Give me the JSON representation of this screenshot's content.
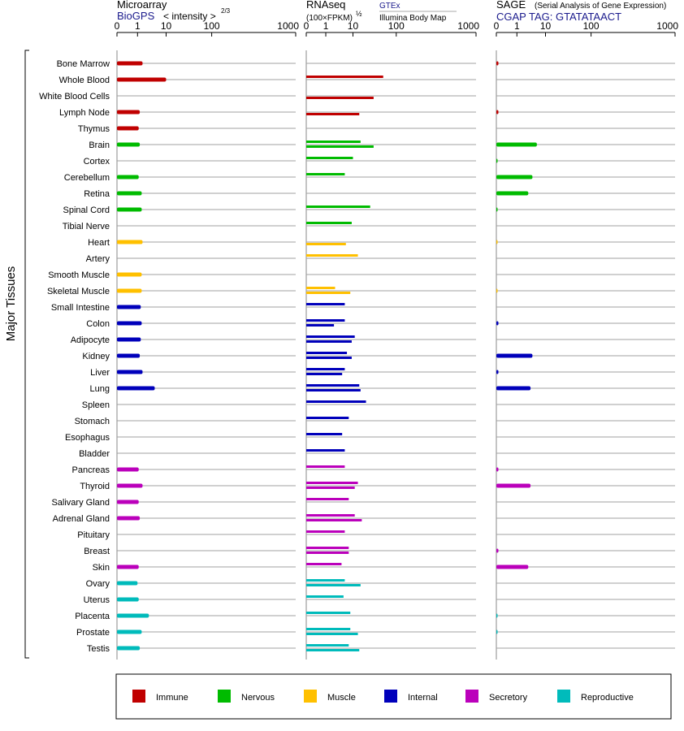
{
  "chart_data": {
    "type": "bar",
    "y_axis_title": "Major Tissues",
    "tissues": [
      {
        "name": "Bone Marrow",
        "group": "Immune"
      },
      {
        "name": "Whole Blood",
        "group": "Immune"
      },
      {
        "name": "White Blood Cells",
        "group": "Immune"
      },
      {
        "name": "Lymph Node",
        "group": "Immune"
      },
      {
        "name": "Thymus",
        "group": "Immune"
      },
      {
        "name": "Brain",
        "group": "Nervous"
      },
      {
        "name": "Cortex",
        "group": "Nervous"
      },
      {
        "name": "Cerebellum",
        "group": "Nervous"
      },
      {
        "name": "Retina",
        "group": "Nervous"
      },
      {
        "name": "Spinal Cord",
        "group": "Nervous"
      },
      {
        "name": "Tibial Nerve",
        "group": "Nervous"
      },
      {
        "name": "Heart",
        "group": "Muscle"
      },
      {
        "name": "Artery",
        "group": "Muscle"
      },
      {
        "name": "Smooth Muscle",
        "group": "Muscle"
      },
      {
        "name": "Skeletal Muscle",
        "group": "Muscle"
      },
      {
        "name": "Small Intestine",
        "group": "Internal"
      },
      {
        "name": "Colon",
        "group": "Internal"
      },
      {
        "name": "Adipocyte",
        "group": "Internal"
      },
      {
        "name": "Kidney",
        "group": "Internal"
      },
      {
        "name": "Liver",
        "group": "Internal"
      },
      {
        "name": "Lung",
        "group": "Internal"
      },
      {
        "name": "Spleen",
        "group": "Internal"
      },
      {
        "name": "Stomach",
        "group": "Internal"
      },
      {
        "name": "Esophagus",
        "group": "Internal"
      },
      {
        "name": "Bladder",
        "group": "Internal"
      },
      {
        "name": "Pancreas",
        "group": "Secretory"
      },
      {
        "name": "Thyroid",
        "group": "Secretory"
      },
      {
        "name": "Salivary Gland",
        "group": "Secretory"
      },
      {
        "name": "Adrenal Gland",
        "group": "Secretory"
      },
      {
        "name": "Pituitary",
        "group": "Secretory"
      },
      {
        "name": "Breast",
        "group": "Secretory"
      },
      {
        "name": "Skin",
        "group": "Secretory"
      },
      {
        "name": "Ovary",
        "group": "Reproductive"
      },
      {
        "name": "Uterus",
        "group": "Reproductive"
      },
      {
        "name": "Placenta",
        "group": "Reproductive"
      },
      {
        "name": "Prostate",
        "group": "Reproductive"
      },
      {
        "name": "Testis",
        "group": "Reproductive"
      }
    ],
    "legend": [
      {
        "name": "Immune",
        "color": "#c00000"
      },
      {
        "name": "Nervous",
        "color": "#00bb00"
      },
      {
        "name": "Muscle",
        "color": "#ffc000"
      },
      {
        "name": "Internal",
        "color": "#0000bb"
      },
      {
        "name": "Secretory",
        "color": "#bb00bb"
      },
      {
        "name": "Reproductive",
        "color": "#00bbbb"
      }
    ],
    "panels": [
      {
        "title": "Microarray",
        "subtitle": "BioGPS",
        "note": "< intensity >",
        "note_exponent": "2/3",
        "scale": "log-like (0 to 1000)",
        "ticks": [
          "0",
          "1",
          "10",
          "100",
          "1000"
        ],
        "values": [
          1.5,
          10,
          null,
          1.2,
          1.1,
          1.2,
          null,
          1.1,
          1.4,
          1.4,
          null,
          1.5,
          null,
          1.4,
          1.4,
          1.3,
          1.4,
          1.3,
          1.2,
          1.5,
          4,
          null,
          null,
          null,
          null,
          1.1,
          1.5,
          1.1,
          1.2,
          null,
          null,
          1.1,
          1.0,
          1.1,
          2.5,
          1.4,
          1.2
        ]
      },
      {
        "title": "RNAseq",
        "subtitle": "(100×FPKM)",
        "subtitle_exponent": "½",
        "source_top": "GTEx",
        "source_bottom": "Illumina Body Map",
        "scale": "log-like (0 to 1000)",
        "ticks": [
          "0",
          "1",
          "10",
          "100",
          "1000"
        ],
        "gtex": [
          null,
          50,
          null,
          null,
          null,
          15,
          10,
          5,
          null,
          25,
          9,
          null,
          13,
          null,
          2.2,
          5,
          5,
          11,
          6,
          5,
          14,
          20,
          7,
          4,
          5,
          5,
          13,
          7,
          11,
          5,
          7,
          3.8,
          5,
          4.5,
          8,
          8,
          7
        ],
        "ibm": [
          null,
          null,
          30,
          14,
          null,
          30,
          null,
          null,
          null,
          null,
          null,
          5.5,
          null,
          null,
          8,
          null,
          2,
          9,
          9,
          4,
          15,
          null,
          null,
          null,
          null,
          null,
          11,
          null,
          16,
          null,
          7,
          null,
          15,
          null,
          null,
          13,
          14
        ]
      },
      {
        "title": "SAGE",
        "title_note": "(Serial Analysis of Gene Expression)",
        "subtitle": "CGAP TAG: GTATATAACT",
        "scale": "log-like (0 to 1000)",
        "ticks": [
          "0",
          "1",
          "10",
          "100",
          "1000"
        ],
        "values": [
          0.1,
          null,
          null,
          0.1,
          null,
          5,
          0.05,
          3.5,
          2.5,
          0.05,
          null,
          0.02,
          null,
          null,
          0.02,
          null,
          0.1,
          null,
          3.5,
          0.1,
          3,
          null,
          null,
          null,
          null,
          0.1,
          3,
          null,
          null,
          null,
          0.1,
          2.5,
          null,
          null,
          0.05,
          0.05,
          null
        ]
      }
    ]
  }
}
